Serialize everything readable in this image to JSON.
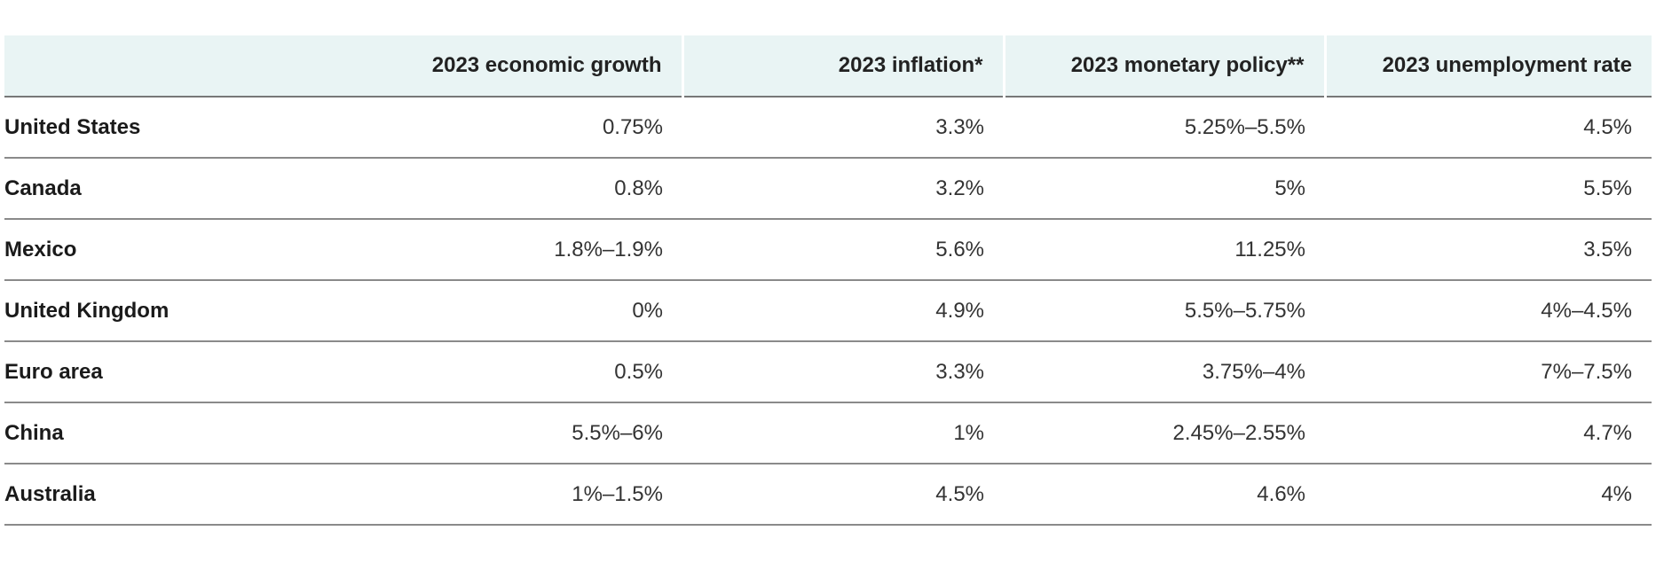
{
  "table": {
    "headers": [
      "",
      "2023 economic growth",
      "2023 inflation*",
      "2023 monetary policy**",
      "2023 unemployment rate"
    ],
    "rows": [
      [
        "United States",
        "0.75%",
        "3.3%",
        "5.25%–5.5%",
        "4.5%"
      ],
      [
        "Canada",
        "0.8%",
        "3.2%",
        "5%",
        "5.5%"
      ],
      [
        "Mexico",
        "1.8%–1.9%",
        "5.6%",
        "11.25%",
        "3.5%"
      ],
      [
        "United Kingdom",
        "0%",
        "4.9%",
        "5.5%–5.75%",
        "4%–4.5%"
      ],
      [
        "Euro area",
        "0.5%",
        "3.3%",
        "3.75%–4%",
        "7%–7.5%"
      ],
      [
        "China",
        "5.5%–6%",
        "1%",
        "2.45%–2.55%",
        "4.7%"
      ],
      [
        "Australia",
        "1%–1.5%",
        "4.5%",
        "4.6%",
        "4%"
      ]
    ],
    "colors": {
      "header_background": "#e9f4f4",
      "rule": "#8a8a8a",
      "text": "#222222"
    }
  }
}
